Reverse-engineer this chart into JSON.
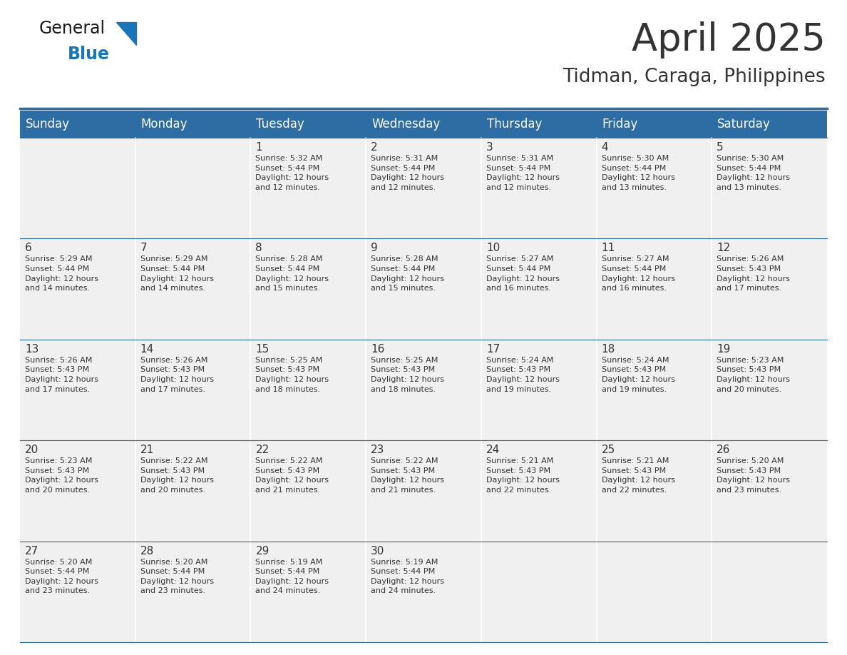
{
  "title": "April 2025",
  "subtitle": "Tidman, Caraga, Philippines",
  "header_color": "#2E6DA4",
  "header_text_color": "#FFFFFF",
  "background_color": "#FFFFFF",
  "cell_bg_color": "#F0F0F0",
  "cell_border_color": "#2E6DA4",
  "text_color": "#333333",
  "day_headers": [
    "Sunday",
    "Monday",
    "Tuesday",
    "Wednesday",
    "Thursday",
    "Friday",
    "Saturday"
  ],
  "weeks": [
    [
      {
        "day": "",
        "text": ""
      },
      {
        "day": "",
        "text": ""
      },
      {
        "day": "1",
        "text": "Sunrise: 5:32 AM\nSunset: 5:44 PM\nDaylight: 12 hours\nand 12 minutes."
      },
      {
        "day": "2",
        "text": "Sunrise: 5:31 AM\nSunset: 5:44 PM\nDaylight: 12 hours\nand 12 minutes."
      },
      {
        "day": "3",
        "text": "Sunrise: 5:31 AM\nSunset: 5:44 PM\nDaylight: 12 hours\nand 12 minutes."
      },
      {
        "day": "4",
        "text": "Sunrise: 5:30 AM\nSunset: 5:44 PM\nDaylight: 12 hours\nand 13 minutes."
      },
      {
        "day": "5",
        "text": "Sunrise: 5:30 AM\nSunset: 5:44 PM\nDaylight: 12 hours\nand 13 minutes."
      }
    ],
    [
      {
        "day": "6",
        "text": "Sunrise: 5:29 AM\nSunset: 5:44 PM\nDaylight: 12 hours\nand 14 minutes."
      },
      {
        "day": "7",
        "text": "Sunrise: 5:29 AM\nSunset: 5:44 PM\nDaylight: 12 hours\nand 14 minutes."
      },
      {
        "day": "8",
        "text": "Sunrise: 5:28 AM\nSunset: 5:44 PM\nDaylight: 12 hours\nand 15 minutes."
      },
      {
        "day": "9",
        "text": "Sunrise: 5:28 AM\nSunset: 5:44 PM\nDaylight: 12 hours\nand 15 minutes."
      },
      {
        "day": "10",
        "text": "Sunrise: 5:27 AM\nSunset: 5:44 PM\nDaylight: 12 hours\nand 16 minutes."
      },
      {
        "day": "11",
        "text": "Sunrise: 5:27 AM\nSunset: 5:44 PM\nDaylight: 12 hours\nand 16 minutes."
      },
      {
        "day": "12",
        "text": "Sunrise: 5:26 AM\nSunset: 5:43 PM\nDaylight: 12 hours\nand 17 minutes."
      }
    ],
    [
      {
        "day": "13",
        "text": "Sunrise: 5:26 AM\nSunset: 5:43 PM\nDaylight: 12 hours\nand 17 minutes."
      },
      {
        "day": "14",
        "text": "Sunrise: 5:26 AM\nSunset: 5:43 PM\nDaylight: 12 hours\nand 17 minutes."
      },
      {
        "day": "15",
        "text": "Sunrise: 5:25 AM\nSunset: 5:43 PM\nDaylight: 12 hours\nand 18 minutes."
      },
      {
        "day": "16",
        "text": "Sunrise: 5:25 AM\nSunset: 5:43 PM\nDaylight: 12 hours\nand 18 minutes."
      },
      {
        "day": "17",
        "text": "Sunrise: 5:24 AM\nSunset: 5:43 PM\nDaylight: 12 hours\nand 19 minutes."
      },
      {
        "day": "18",
        "text": "Sunrise: 5:24 AM\nSunset: 5:43 PM\nDaylight: 12 hours\nand 19 minutes."
      },
      {
        "day": "19",
        "text": "Sunrise: 5:23 AM\nSunset: 5:43 PM\nDaylight: 12 hours\nand 20 minutes."
      }
    ],
    [
      {
        "day": "20",
        "text": "Sunrise: 5:23 AM\nSunset: 5:43 PM\nDaylight: 12 hours\nand 20 minutes."
      },
      {
        "day": "21",
        "text": "Sunrise: 5:22 AM\nSunset: 5:43 PM\nDaylight: 12 hours\nand 20 minutes."
      },
      {
        "day": "22",
        "text": "Sunrise: 5:22 AM\nSunset: 5:43 PM\nDaylight: 12 hours\nand 21 minutes."
      },
      {
        "day": "23",
        "text": "Sunrise: 5:22 AM\nSunset: 5:43 PM\nDaylight: 12 hours\nand 21 minutes."
      },
      {
        "day": "24",
        "text": "Sunrise: 5:21 AM\nSunset: 5:43 PM\nDaylight: 12 hours\nand 22 minutes."
      },
      {
        "day": "25",
        "text": "Sunrise: 5:21 AM\nSunset: 5:43 PM\nDaylight: 12 hours\nand 22 minutes."
      },
      {
        "day": "26",
        "text": "Sunrise: 5:20 AM\nSunset: 5:43 PM\nDaylight: 12 hours\nand 23 minutes."
      }
    ],
    [
      {
        "day": "27",
        "text": "Sunrise: 5:20 AM\nSunset: 5:44 PM\nDaylight: 12 hours\nand 23 minutes."
      },
      {
        "day": "28",
        "text": "Sunrise: 5:20 AM\nSunset: 5:44 PM\nDaylight: 12 hours\nand 23 minutes."
      },
      {
        "day": "29",
        "text": "Sunrise: 5:19 AM\nSunset: 5:44 PM\nDaylight: 12 hours\nand 24 minutes."
      },
      {
        "day": "30",
        "text": "Sunrise: 5:19 AM\nSunset: 5:44 PM\nDaylight: 12 hours\nand 24 minutes."
      },
      {
        "day": "",
        "text": ""
      },
      {
        "day": "",
        "text": ""
      },
      {
        "day": "",
        "text": ""
      }
    ]
  ],
  "logo_color_general": "#1a1a1a",
  "logo_color_blue": "#1a75b8",
  "logo_triangle_color": "#1a75b8",
  "title_fontsize": 38,
  "subtitle_fontsize": 19,
  "day_header_fontsize": 12,
  "day_number_fontsize": 11,
  "cell_text_fontsize": 8
}
